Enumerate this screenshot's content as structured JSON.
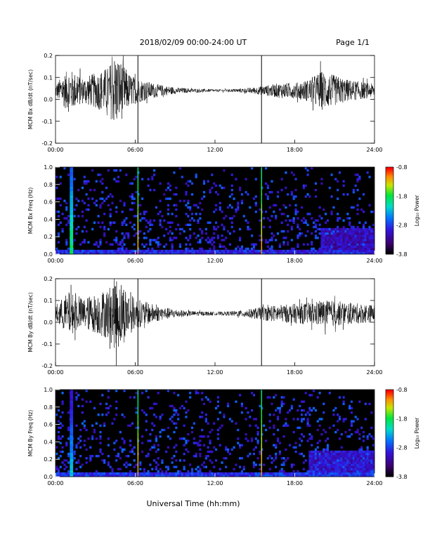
{
  "header": {
    "title": "2018/02/09  00:00-24:00 UT",
    "page": "Page 1/1"
  },
  "xaxis_title": "Universal Time (hh:mm)",
  "colors": {
    "background": "#ffffff",
    "trace": "#000000",
    "spectrogram_background": "#000000"
  },
  "chart_data": [
    {
      "type": "line",
      "title": "",
      "ylabel": "MCM Bx dB/dt (nT/sec)",
      "xlabel": "",
      "x_range": [
        "00:00",
        "24:00"
      ],
      "x_ticks": [
        "00:00",
        "06:00",
        "12:00",
        "18:00",
        "24:00"
      ],
      "ylim": [
        -0.2,
        0.2
      ],
      "y_ticks": [
        "-0.2",
        "-0.1",
        "0.0",
        "0.1",
        "0.2"
      ],
      "baseline": 0.04,
      "series": [
        {
          "envelope_x_hours": [
            0,
            1,
            2,
            3,
            4,
            4.5,
            5,
            5.5,
            6,
            7,
            8,
            9,
            10,
            11,
            12,
            13,
            14,
            15,
            15.5,
            16,
            17,
            18,
            19,
            20,
            21,
            22,
            23,
            24
          ],
          "envelope_amplitude": [
            0.03,
            0.1,
            0.06,
            0.08,
            0.11,
            0.17,
            0.13,
            0.08,
            0.06,
            0.04,
            0.025,
            0.015,
            0.01,
            0.008,
            0.006,
            0.006,
            0.01,
            0.015,
            0.02,
            0.025,
            0.035,
            0.035,
            0.05,
            0.09,
            0.07,
            0.05,
            0.04,
            0.03
          ]
        }
      ],
      "vertical_spikes_hours": [
        6.2,
        15.5
      ]
    },
    {
      "type": "heatmap",
      "title": "",
      "ylabel": "MCM Bx Freq (Hz)",
      "xlabel": "",
      "x_range": [
        "00:00",
        "24:00"
      ],
      "x_ticks": [
        "00:00",
        "06:00",
        "12:00",
        "18:00",
        "24:00"
      ],
      "ylim": [
        0,
        1.0
      ],
      "y_ticks": [
        "0.0",
        "0.2",
        "0.4",
        "0.6",
        "0.8",
        "1.0"
      ],
      "colorbar": {
        "label": "Log₁₀ Power",
        "range": [
          -3.8,
          -0.8
        ],
        "ticks": [
          "-0.8",
          "-1.8",
          "-2.8",
          "-3.8"
        ]
      },
      "broadband_bands_hours": [
        {
          "center": 1.2,
          "width": 0.25,
          "level": -2.0
        },
        {
          "center": 6.2,
          "width": 0.07,
          "level": -1.3
        },
        {
          "center": 15.5,
          "width": 0.07,
          "level": -1.3
        }
      ],
      "enhanced_regions": [
        {
          "x_range_hours": [
            20,
            24
          ],
          "freq_range_hz": [
            0.0,
            0.3
          ],
          "level": -2.9
        },
        {
          "x_range_hours": [
            0,
            24
          ],
          "freq_range_hz": [
            0.0,
            0.05
          ],
          "level": -2.7
        }
      ]
    },
    {
      "type": "line",
      "title": "",
      "ylabel": "MCM By dB/dt (nT/sec)",
      "xlabel": "",
      "x_range": [
        "00:00",
        "24:00"
      ],
      "x_ticks": [
        "00:00",
        "06:00",
        "12:00",
        "18:00",
        "24:00"
      ],
      "ylim": [
        -0.2,
        0.2
      ],
      "y_ticks": [
        "-0.2",
        "-0.1",
        "0.0",
        "0.1",
        "0.2"
      ],
      "baseline": 0.04,
      "series": [
        {
          "envelope_x_hours": [
            0,
            1,
            2,
            3,
            4,
            4.5,
            5,
            5.5,
            6,
            7,
            8,
            9,
            10,
            11,
            12,
            13,
            14,
            15,
            15.5,
            16,
            17,
            18,
            19,
            20,
            21,
            22,
            23,
            24
          ],
          "envelope_amplitude": [
            0.04,
            0.1,
            0.07,
            0.09,
            0.12,
            0.17,
            0.15,
            0.1,
            0.07,
            0.05,
            0.03,
            0.02,
            0.012,
            0.01,
            0.008,
            0.01,
            0.015,
            0.025,
            0.03,
            0.035,
            0.04,
            0.045,
            0.05,
            0.06,
            0.06,
            0.05,
            0.045,
            0.04
          ]
        }
      ],
      "vertical_spikes_hours": [
        6.2,
        15.5
      ]
    },
    {
      "type": "heatmap",
      "title": "",
      "ylabel": "MCM By Freq (Hz)",
      "xlabel": "",
      "x_range": [
        "00:00",
        "24:00"
      ],
      "x_ticks": [
        "00:00",
        "06:00",
        "12:00",
        "18:00",
        "24:00"
      ],
      "ylim": [
        0,
        1.0
      ],
      "y_ticks": [
        "0.0",
        "0.2",
        "0.4",
        "0.6",
        "0.8",
        "1.0"
      ],
      "colorbar": {
        "label": "Log₁₀ Power",
        "range": [
          -3.8,
          -0.8
        ],
        "ticks": [
          "-0.8",
          "-1.8",
          "-2.8",
          "-3.8"
        ]
      },
      "broadband_bands_hours": [
        {
          "center": 1.2,
          "width": 0.25,
          "level": -2.4
        },
        {
          "center": 6.2,
          "width": 0.07,
          "level": -1.3
        },
        {
          "center": 15.5,
          "width": 0.07,
          "level": -1.3
        }
      ],
      "enhanced_regions": [
        {
          "x_range_hours": [
            19,
            24
          ],
          "freq_range_hz": [
            0.0,
            0.3
          ],
          "level": -2.8
        },
        {
          "x_range_hours": [
            0,
            24
          ],
          "freq_range_hz": [
            0.0,
            0.05
          ],
          "level": -2.6
        }
      ]
    }
  ]
}
